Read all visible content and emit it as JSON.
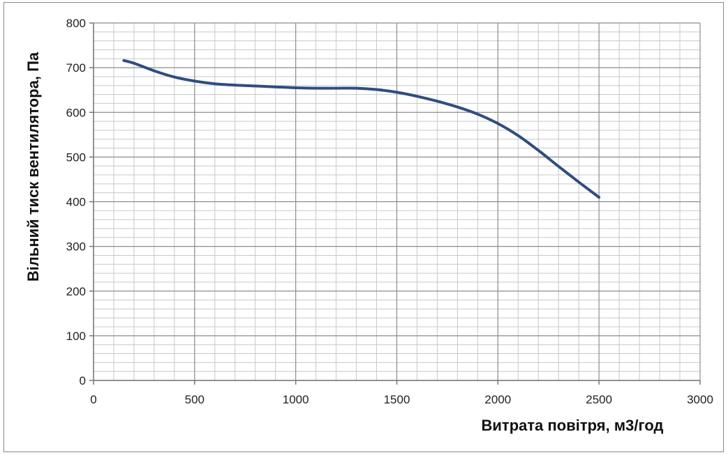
{
  "chart_data": {
    "type": "line",
    "title": "",
    "xlabel": "Витрата  повітря, м3/год",
    "ylabel": "Вільний тиск вентилятора, Па",
    "xlim": [
      0,
      3000
    ],
    "ylim": [
      0,
      800
    ],
    "x_major_ticks": [
      0,
      500,
      1000,
      1500,
      2000,
      2500,
      3000
    ],
    "x_tick_labels": [
      "0",
      "500",
      "1000",
      "1500",
      "2000",
      "2500",
      "3000"
    ],
    "y_major_ticks": [
      0,
      100,
      200,
      300,
      400,
      500,
      600,
      700,
      800
    ],
    "y_tick_labels": [
      "0",
      "100",
      "200",
      "300",
      "400",
      "500",
      "600",
      "700",
      "800"
    ],
    "x_minor_step": 100,
    "y_minor_step": 20,
    "grid": true,
    "legend": "none",
    "colors": {
      "line": "#2f4d7f",
      "major_grid": "#8c8c8c",
      "minor_grid": "#c8c8c8"
    },
    "series": [
      {
        "x": [
          150,
          200,
          300,
          400,
          500,
          600,
          700,
          800,
          900,
          1000,
          1100,
          1200,
          1300,
          1400,
          1500,
          1600,
          1700,
          1800,
          1900,
          2000,
          2100,
          2200,
          2300,
          2400,
          2500
        ],
        "y": [
          716,
          710,
          693,
          679,
          670,
          664,
          661,
          659,
          657,
          655,
          654,
          654,
          654,
          651,
          645,
          636,
          625,
          612,
          596,
          575,
          548,
          515,
          479,
          444,
          410
        ]
      }
    ]
  }
}
